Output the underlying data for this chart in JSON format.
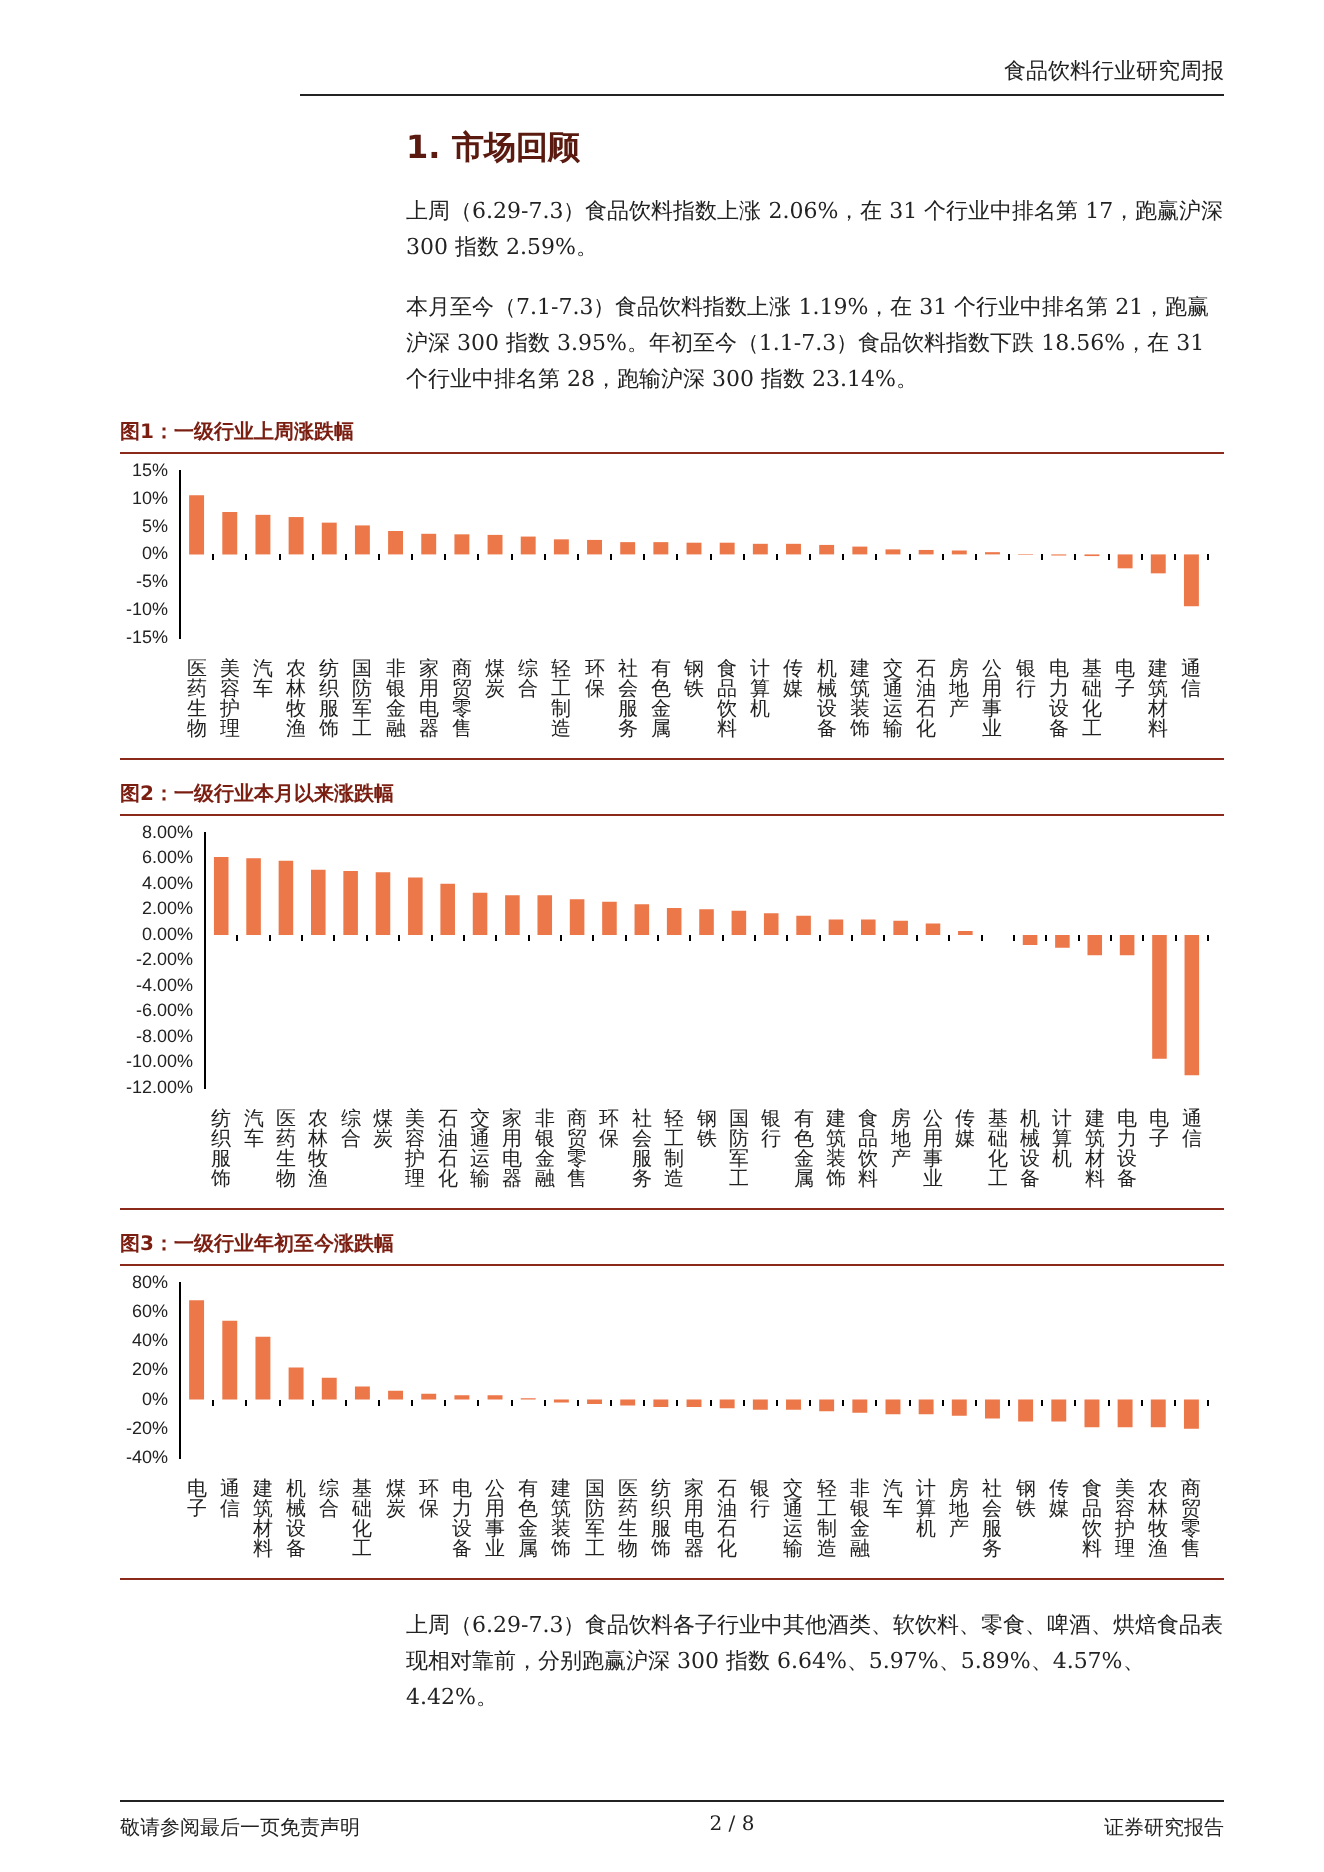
{
  "chart_data": [
    {
      "type": "other",
      "title": "1. 市场回顾",
      "annotations": [
        "食品饮料行业研究周报",
        "上周（6.29-7.3）食品饮料指数上涨 2.06%，在 31 个行业中排名第 17，跑赢沪深 300 指数 2.59%。",
        "本月至今（7.1-7.3）食品饮料指数上涨 1.19%，在 31 个行业中排名第 21，跑赢沪深 300 指数 3.95%。年初至今（1.1-7.3）食品饮料指数下跌 18.56%，在 31 个行业中排名第 28，跑输沪深 300 指数 23.14%。"
      ]
    },
    {
      "type": "bar",
      "title": "图1：一级行业上周涨跌幅",
      "color": "#ec7748",
      "legend": false,
      "grid": false,
      "categories": [
        "医药生物",
        "美容护理",
        "汽车",
        "农林牧渔",
        "纺织服饰",
        "国防军工",
        "非银金融",
        "家用电器",
        "商贸零售",
        "煤炭",
        "综合",
        "轻工制造",
        "环保",
        "社会服务",
        "有色金属",
        "钢铁",
        "食品饮料",
        "计算机",
        "传媒",
        "机械设备",
        "建筑装饰",
        "交通运输",
        "石油石化",
        "房地产",
        "公用事业",
        "银行",
        "电力设备",
        "基础化工",
        "电子",
        "建筑材料",
        "通信"
      ],
      "values": [
        10.6,
        7.6,
        7.1,
        6.7,
        5.7,
        5.2,
        4.2,
        3.7,
        3.6,
        3.5,
        3.2,
        2.7,
        2.6,
        2.2,
        2.2,
        2.1,
        2.1,
        1.9,
        1.9,
        1.7,
        1.4,
        0.9,
        0.8,
        0.7,
        0.4,
        -0.1,
        -0.2,
        -0.3,
        -2.5,
        -3.4,
        -9.3
      ],
      "ylim": [
        -15,
        15
      ],
      "yticks": [
        {
          "value": 15,
          "label": "15%"
        },
        {
          "value": 10,
          "label": "10%"
        },
        {
          "value": 5,
          "label": "5%"
        },
        {
          "value": 0,
          "label": "0%"
        },
        {
          "value": -5,
          "label": "-5%"
        },
        {
          "value": -10,
          "label": "-10%"
        },
        {
          "value": -15,
          "label": "-15%"
        }
      ]
    },
    {
      "type": "bar",
      "title": "图2：一级行业本月以来涨跌幅",
      "color": "#ec7748",
      "legend": false,
      "grid": false,
      "categories": [
        "纺织服饰",
        "汽车",
        "医药生物",
        "农林牧渔",
        "综合",
        "煤炭",
        "美容护理",
        "石油石化",
        "交通运输",
        "家用电器",
        "非银金融",
        "商贸零售",
        "环保",
        "社会服务",
        "轻工制造",
        "钢铁",
        "国防军工",
        "银行",
        "有色金属",
        "建筑装饰",
        "食品饮料",
        "房地产",
        "公用事业",
        "传媒",
        "基础化工",
        "机械设备",
        "计算机",
        "建筑材料",
        "电力设备",
        "电子",
        "通信"
      ],
      "values": [
        6.1,
        6.0,
        5.8,
        5.1,
        5.0,
        4.9,
        4.5,
        4.0,
        3.3,
        3.1,
        3.1,
        2.8,
        2.6,
        2.4,
        2.1,
        2.0,
        1.9,
        1.7,
        1.5,
        1.2,
        1.2,
        1.1,
        0.9,
        0.3,
        0.0,
        -0.8,
        -1.0,
        -1.6,
        -1.6,
        -9.7,
        -11.0
      ],
      "ylim": [
        -12,
        8
      ],
      "yticks": [
        {
          "value": 8,
          "label": "8.00%"
        },
        {
          "value": 6,
          "label": "6.00%"
        },
        {
          "value": 4,
          "label": "4.00%"
        },
        {
          "value": 2,
          "label": "2.00%"
        },
        {
          "value": 0,
          "label": "0.00%"
        },
        {
          "value": -2,
          "label": "-2.00%"
        },
        {
          "value": -4,
          "label": "-4.00%"
        },
        {
          "value": -6,
          "label": "-6.00%"
        },
        {
          "value": -8,
          "label": "-8.00%"
        },
        {
          "value": -10,
          "label": "-10.00%"
        },
        {
          "value": -12,
          "label": "-12.00%"
        }
      ]
    },
    {
      "type": "bar",
      "title": "图3：一级行业年初至今涨跌幅",
      "color": "#ec7748",
      "legend": false,
      "grid": false,
      "categories": [
        "电子",
        "通信",
        "建筑材料",
        "机械设备",
        "综合",
        "基础化工",
        "煤炭",
        "环保",
        "电力设备",
        "公用事业",
        "有色金属",
        "建筑装饰",
        "国防军工",
        "医药生物",
        "纺织服饰",
        "家用电器",
        "石油石化",
        "银行",
        "交通运输",
        "轻工制造",
        "非银金融",
        "汽车",
        "计算机",
        "房地产",
        "社会服务",
        "钢铁",
        "传媒",
        "食品饮料",
        "美容护理",
        "农林牧渔",
        "商贸零售"
      ],
      "values": [
        68,
        54,
        43,
        22,
        15,
        9,
        6,
        4,
        3,
        3,
        1,
        -2,
        -3,
        -4,
        -5,
        -5,
        -6,
        -7,
        -7,
        -8,
        -9,
        -10,
        -10,
        -11,
        -13,
        -15,
        -15,
        -19,
        -19,
        -19,
        -20
      ],
      "ylim": [
        -40,
        80
      ],
      "yticks": [
        {
          "value": 80,
          "label": "80%"
        },
        {
          "value": 60,
          "label": "60%"
        },
        {
          "value": 40,
          "label": "40%"
        },
        {
          "value": 20,
          "label": "20%"
        },
        {
          "value": 0,
          "label": "0%"
        },
        {
          "value": -20,
          "label": "-20%"
        },
        {
          "value": -40,
          "label": "-40%"
        }
      ]
    },
    {
      "type": "other",
      "annotations": [
        "上周（6.29-7.3）食品饮料各子行业中其他酒类、软饮料、零食、啤酒、烘焙食品表现相对靠前，分别跑赢沪深 300 指数 6.64%、5.97%、5.89%、4.57%、4.42%。",
        "敬请参阅最后一页免责声明",
        "2 / 8",
        "证券研究报告"
      ]
    }
  ]
}
